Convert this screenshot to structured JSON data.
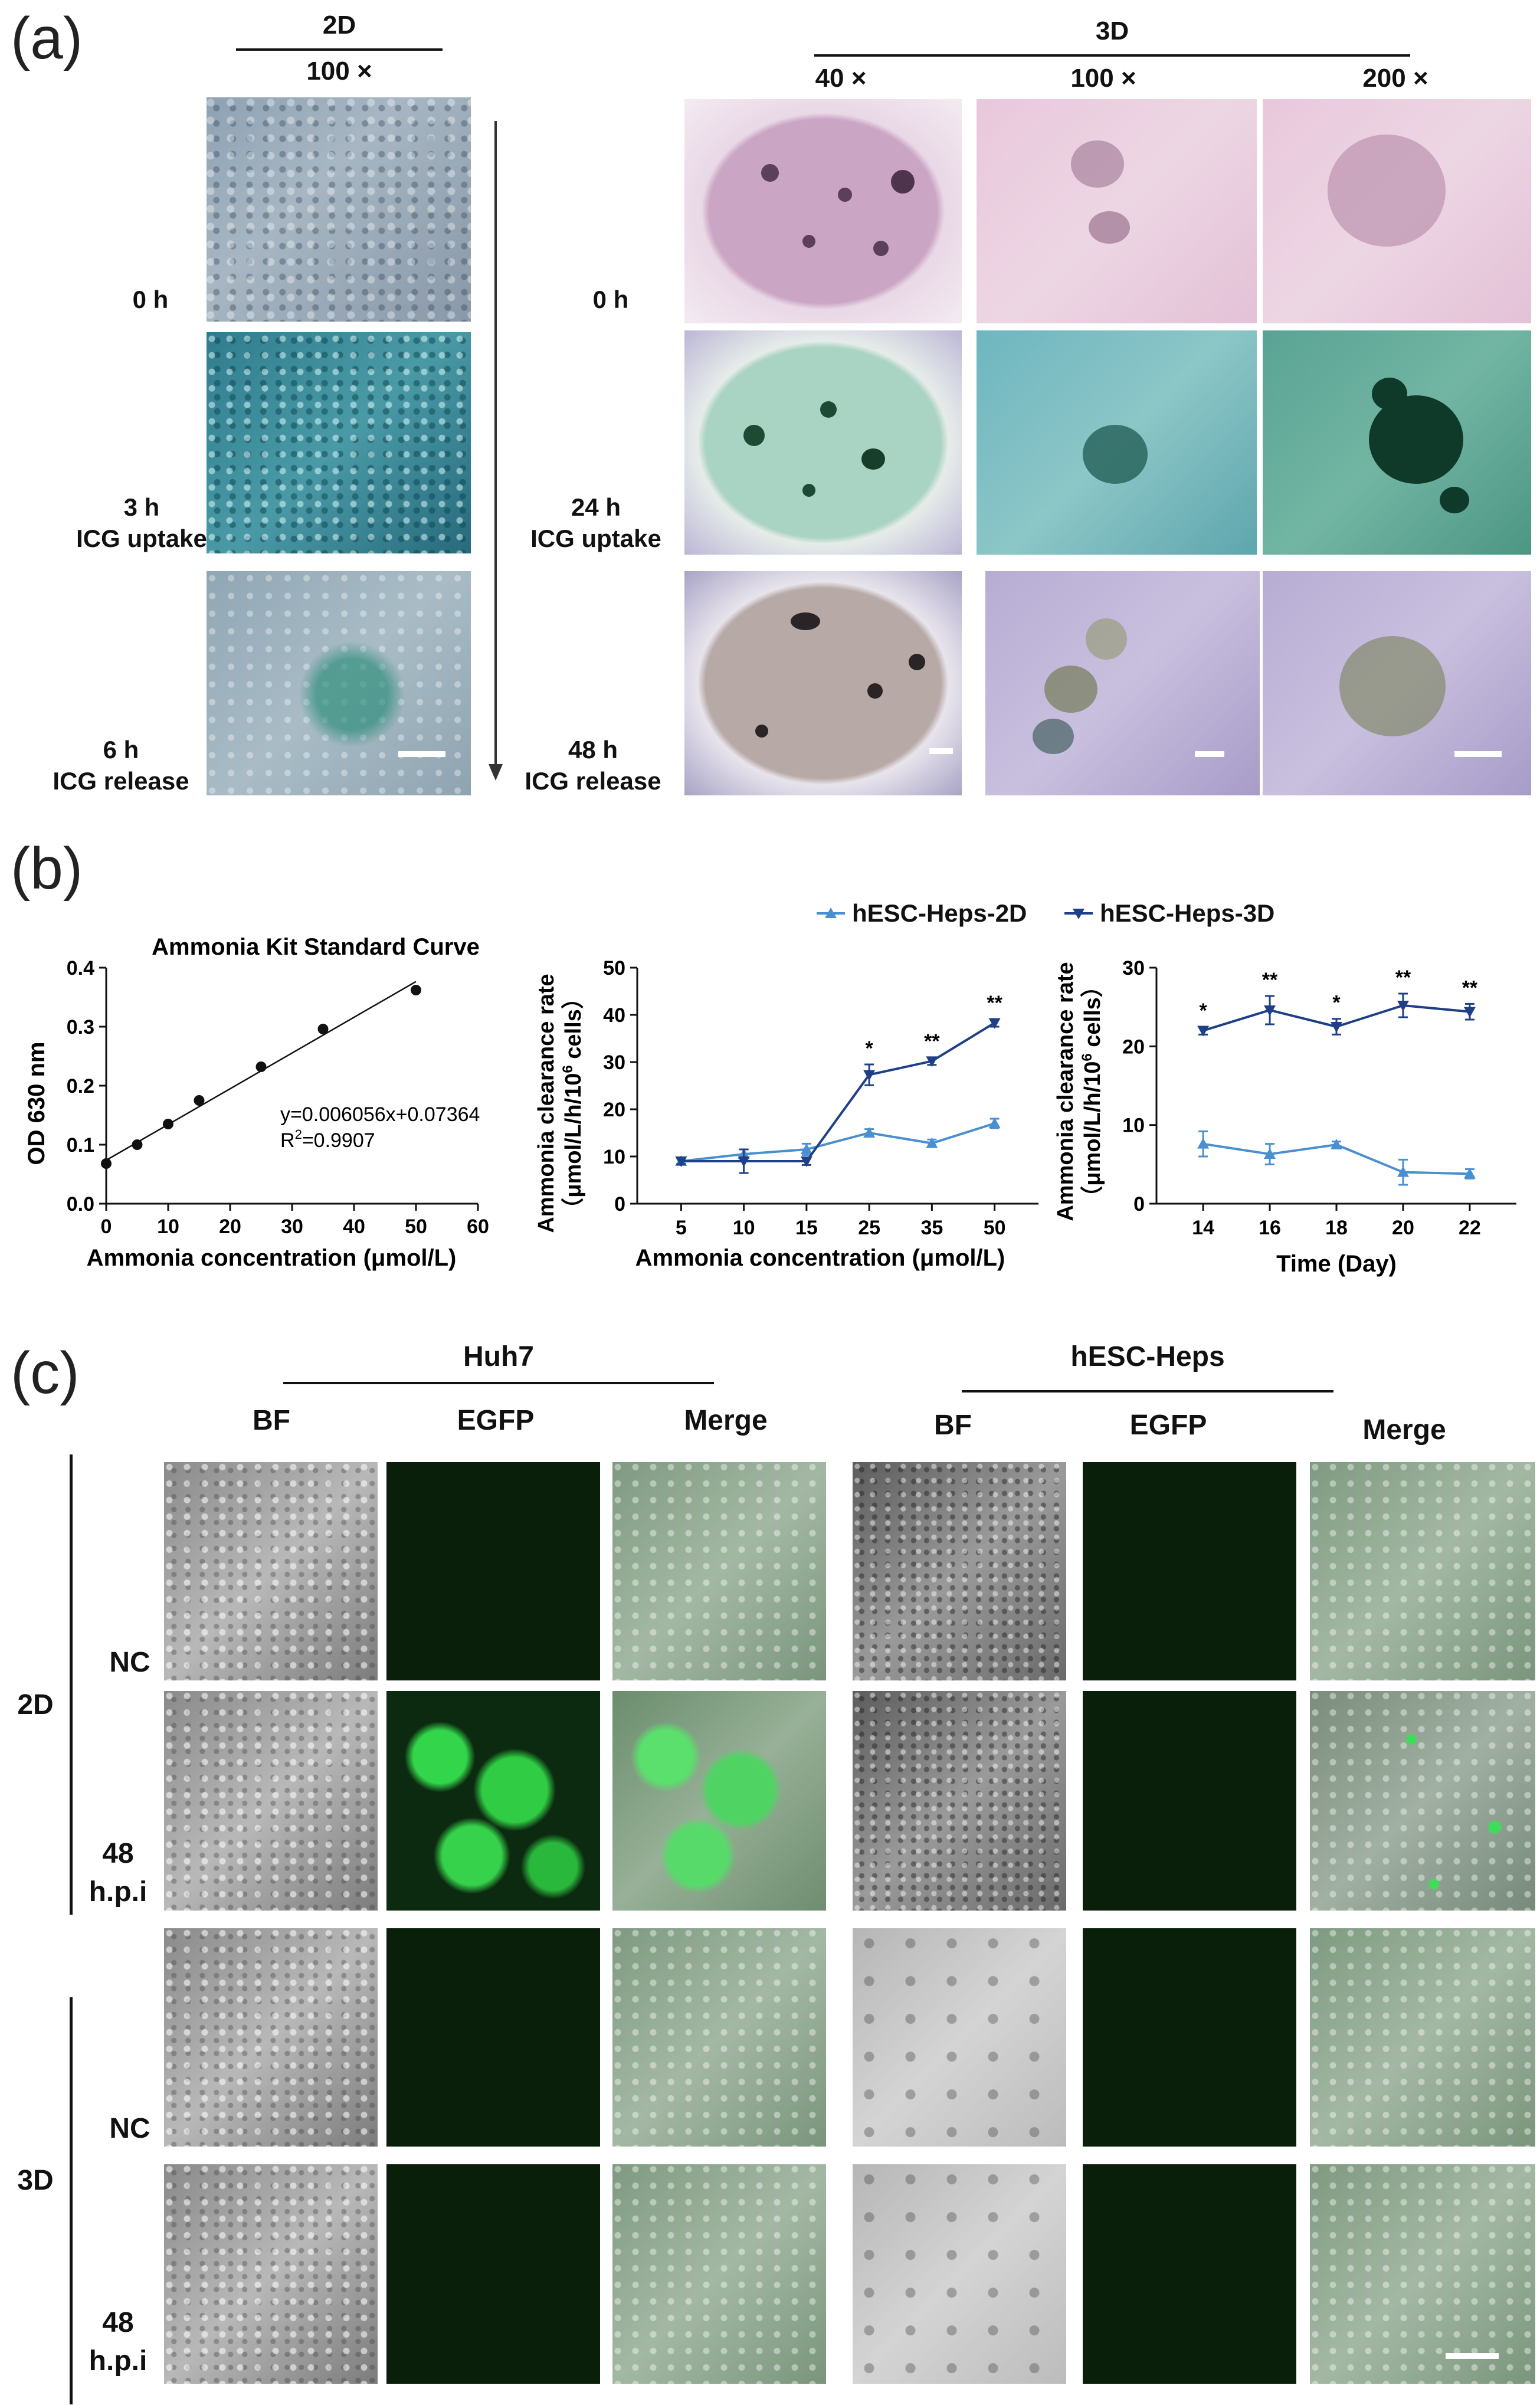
{
  "panel_a": {
    "letter": "(a)",
    "left": {
      "header": "2D",
      "mag": "100 ×",
      "rows": [
        [
          "0 h"
        ],
        [
          "3 h",
          "ICG uptake"
        ],
        [
          "6 h",
          "ICG release"
        ]
      ]
    },
    "right": {
      "header": "3D",
      "mags": [
        "40 ×",
        "100 ×",
        "200 ×"
      ],
      "rows": [
        [
          "0 h"
        ],
        [
          "24 h",
          "ICG uptake"
        ],
        [
          "48 h",
          "ICG release"
        ]
      ]
    }
  },
  "panel_b": {
    "letter": "(b)"
  },
  "chart_data": [
    {
      "type": "scatter",
      "title": "Ammonia Kit Standard Curve",
      "xlabel": "Ammonia concentration (μmol/L)",
      "ylabel": "OD 630 nm",
      "xlim": [
        0,
        60
      ],
      "ylim": [
        0,
        0.4
      ],
      "xticks": [
        "0",
        "10",
        "20",
        "30",
        "40",
        "50",
        "60"
      ],
      "yticks": [
        "0.0",
        "0.1",
        "0.2",
        "0.3",
        "0.4"
      ],
      "x": [
        0,
        5,
        10,
        15,
        25,
        35,
        50
      ],
      "y": [
        0.068,
        0.1,
        0.135,
        0.175,
        0.232,
        0.296,
        0.362
      ],
      "fit": {
        "slope": 0.006056,
        "intercept": 0.07364
      },
      "equation": "y=0.006056x+0.07364",
      "r2_prefix": "R",
      "r2_sup": "2",
      "r2_value": "=0.9907"
    },
    {
      "type": "line",
      "xlabel": "Ammonia concentration (μmol/L)",
      "ylabel_line1": "Ammonia clearance rate",
      "ylabel_line2": "（μmol/L/h/10",
      "ylabel_sup": "6",
      "ylabel_end": " cells）",
      "ylim": [
        0,
        50
      ],
      "categories": [
        "5",
        "10",
        "15",
        "25",
        "35",
        "50"
      ],
      "yticks": [
        "0",
        "10",
        "20",
        "30",
        "40",
        "50"
      ],
      "series": [
        {
          "name": "hESC-Heps-2D",
          "color": "#4a8fd0",
          "values": [
            9,
            10.5,
            11.5,
            15,
            12.8,
            17
          ],
          "err": [
            0.8,
            1.0,
            1.2,
            0.8,
            0.8,
            1.0
          ]
        },
        {
          "name": "hESC-Heps-3D",
          "color": "#1f3f86",
          "values": [
            9,
            9,
            9,
            27.3,
            30.2,
            38.3
          ],
          "err": [
            0.6,
            2.5,
            0.8,
            2.2,
            0.8,
            0.8
          ]
        }
      ],
      "significance": [
        "",
        "",
        "",
        "*",
        "**",
        "**"
      ]
    },
    {
      "type": "line",
      "xlabel": "Time (Day)",
      "ylabel_line1": "Ammonia clearance rate",
      "ylabel_line2": "（μmol/L/h/10",
      "ylabel_sup": "6",
      "ylabel_end": " cells）",
      "ylim": [
        0,
        30
      ],
      "categories": [
        "14",
        "16",
        "18",
        "20",
        "22"
      ],
      "yticks": [
        "0",
        "10",
        "20",
        "30"
      ],
      "series": [
        {
          "name": "hESC-Heps-2D",
          "color": "#4a8fd0",
          "values": [
            7.6,
            6.3,
            7.5,
            4,
            3.8
          ],
          "err": [
            1.6,
            1.3,
            0.4,
            1.6,
            0.6
          ]
        },
        {
          "name": "hESC-Heps-3D",
          "color": "#1f3f86",
          "values": [
            22,
            24.6,
            22.5,
            25.2,
            24.4
          ],
          "err": [
            0.5,
            1.8,
            1.0,
            1.5,
            1.0
          ]
        }
      ],
      "significance": [
        "*",
        "**",
        "*",
        "**",
        "**"
      ]
    }
  ],
  "legend": [
    "hESC-Heps-2D",
    "hESC-Heps-3D"
  ],
  "panel_c": {
    "letter": "(c)",
    "groups": [
      "Huh7",
      "hESC-Heps"
    ],
    "columns": [
      "BF",
      "EGFP",
      "Merge",
      "BF",
      "EGFP",
      "Merge"
    ],
    "conditions": [
      "2D",
      "3D"
    ],
    "rows": [
      [
        "NC"
      ],
      [
        "48",
        "h.p.i"
      ],
      [
        "NC"
      ],
      [
        "48",
        "h.p.i"
      ]
    ]
  }
}
